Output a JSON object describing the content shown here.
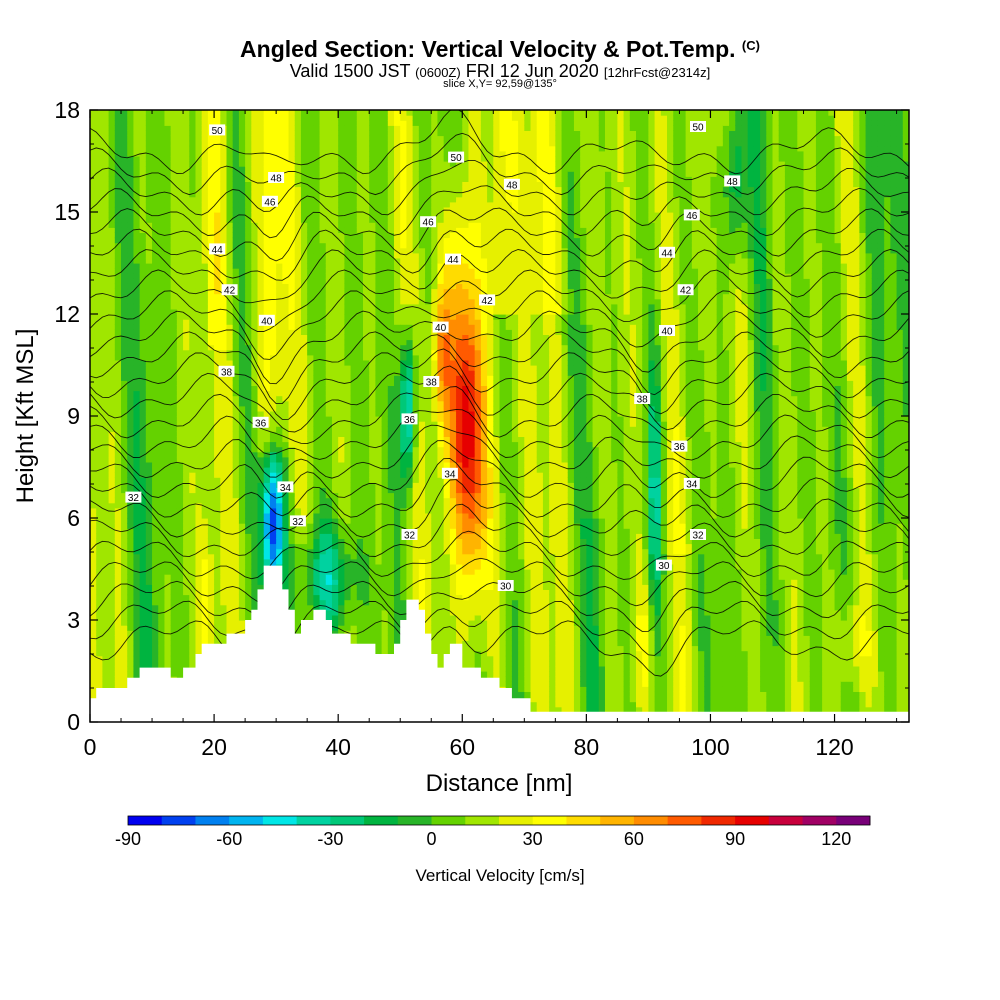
{
  "header": {
    "title": "Angled Section: Vertical Velocity & Pot.Temp.",
    "title_mark": "(C)",
    "valid_prefix": "Valid 1500 JST",
    "valid_utc": "(0600Z)",
    "valid_date": "FRI 12 Jun 2020",
    "forecast": "[12hrFcst@2314z]",
    "slice": "slice X,Y= 92,59@135°"
  },
  "chart_data": {
    "type": "heatmap",
    "xlabel": "Distance [nm]",
    "ylabel": "Height [Kft MSL]",
    "xlim": [
      0,
      132
    ],
    "ylim": [
      0,
      18
    ],
    "x_ticks": [
      0,
      20,
      40,
      60,
      80,
      100,
      120
    ],
    "y_ticks": [
      0,
      3,
      6,
      9,
      12,
      15,
      18
    ],
    "colorbar": {
      "label": "Vertical Velocity [cm/s]",
      "min": -90,
      "max": 130,
      "step": 10,
      "tick_values": [
        -90,
        -60,
        -30,
        0,
        30,
        60,
        90,
        120
      ],
      "colors": [
        "#0000f0",
        "#0040f0",
        "#0080f0",
        "#00b4f0",
        "#00e6e6",
        "#00d2a0",
        "#00c878",
        "#00b440",
        "#28b428",
        "#64d200",
        "#a0e600",
        "#e6f000",
        "#ffff00",
        "#ffdc00",
        "#ffb400",
        "#ff8c00",
        "#ff5a00",
        "#f02800",
        "#e60000",
        "#c8003c",
        "#a00064",
        "#780078"
      ]
    },
    "terrain_heights_kft": [
      {
        "x": 0,
        "h": 0.7
      },
      {
        "x": 1,
        "h": 1.0
      },
      {
        "x": 6,
        "h": 1.3
      },
      {
        "x": 8,
        "h": 1.6
      },
      {
        "x": 13,
        "h": 1.3
      },
      {
        "x": 15,
        "h": 1.6
      },
      {
        "x": 17,
        "h": 2.0
      },
      {
        "x": 18,
        "h": 2.3
      },
      {
        "x": 22,
        "h": 2.6
      },
      {
        "x": 25,
        "h": 3.0
      },
      {
        "x": 26,
        "h": 3.3
      },
      {
        "x": 27,
        "h": 3.9
      },
      {
        "x": 28,
        "h": 4.6
      },
      {
        "x": 31,
        "h": 3.9
      },
      {
        "x": 32,
        "h": 3.3
      },
      {
        "x": 33,
        "h": 2.6
      },
      {
        "x": 34,
        "h": 3.0
      },
      {
        "x": 36,
        "h": 3.3
      },
      {
        "x": 38,
        "h": 3.0
      },
      {
        "x": 39,
        "h": 2.6
      },
      {
        "x": 42,
        "h": 2.3
      },
      {
        "x": 46,
        "h": 2.0
      },
      {
        "x": 49,
        "h": 2.3
      },
      {
        "x": 50,
        "h": 3.0
      },
      {
        "x": 51,
        "h": 3.6
      },
      {
        "x": 53,
        "h": 3.3
      },
      {
        "x": 54,
        "h": 2.6
      },
      {
        "x": 55,
        "h": 2.0
      },
      {
        "x": 56,
        "h": 1.6
      },
      {
        "x": 57,
        "h": 2.0
      },
      {
        "x": 58,
        "h": 2.3
      },
      {
        "x": 60,
        "h": 1.6
      },
      {
        "x": 63,
        "h": 1.3
      },
      {
        "x": 66,
        "h": 1.0
      },
      {
        "x": 68,
        "h": 0.7
      },
      {
        "x": 71,
        "h": 0.3
      },
      {
        "x": 132,
        "h": 0.3
      }
    ],
    "contour_field": "potential temperature [C]",
    "contour_labels": [
      {
        "x": 20.5,
        "y": 17.4,
        "value": "50"
      },
      {
        "x": 30,
        "y": 16.0,
        "value": "48"
      },
      {
        "x": 29,
        "y": 15.3,
        "value": "46"
      },
      {
        "x": 20.5,
        "y": 13.9,
        "value": "44"
      },
      {
        "x": 22.5,
        "y": 12.7,
        "value": "42"
      },
      {
        "x": 28.5,
        "y": 11.8,
        "value": "40"
      },
      {
        "x": 22,
        "y": 10.3,
        "value": "38"
      },
      {
        "x": 27.5,
        "y": 8.8,
        "value": "36"
      },
      {
        "x": 7,
        "y": 6.6,
        "value": "32"
      },
      {
        "x": 31.5,
        "y": 6.9,
        "value": "34"
      },
      {
        "x": 33.5,
        "y": 5.9,
        "value": "32"
      },
      {
        "x": 59,
        "y": 16.6,
        "value": "50"
      },
      {
        "x": 54.5,
        "y": 14.7,
        "value": "46"
      },
      {
        "x": 58.5,
        "y": 13.6,
        "value": "44"
      },
      {
        "x": 64,
        "y": 12.4,
        "value": "42"
      },
      {
        "x": 56.5,
        "y": 11.6,
        "value": "40"
      },
      {
        "x": 55,
        "y": 10.0,
        "value": "38"
      },
      {
        "x": 51.5,
        "y": 8.9,
        "value": "36"
      },
      {
        "x": 58,
        "y": 7.3,
        "value": "34"
      },
      {
        "x": 51.5,
        "y": 5.5,
        "value": "32"
      },
      {
        "x": 67,
        "y": 4.0,
        "value": "30"
      },
      {
        "x": 68,
        "y": 15.8,
        "value": "48"
      },
      {
        "x": 98,
        "y": 17.5,
        "value": "50"
      },
      {
        "x": 103.5,
        "y": 15.9,
        "value": "48"
      },
      {
        "x": 97,
        "y": 14.9,
        "value": "46"
      },
      {
        "x": 93,
        "y": 13.8,
        "value": "44"
      },
      {
        "x": 96,
        "y": 12.7,
        "value": "42"
      },
      {
        "x": 93,
        "y": 11.5,
        "value": "40"
      },
      {
        "x": 89,
        "y": 9.5,
        "value": "38"
      },
      {
        "x": 95,
        "y": 8.1,
        "value": "36"
      },
      {
        "x": 97,
        "y": 7.0,
        "value": "34"
      },
      {
        "x": 98,
        "y": 5.5,
        "value": "32"
      },
      {
        "x": 92.5,
        "y": 4.6,
        "value": "30"
      }
    ]
  }
}
